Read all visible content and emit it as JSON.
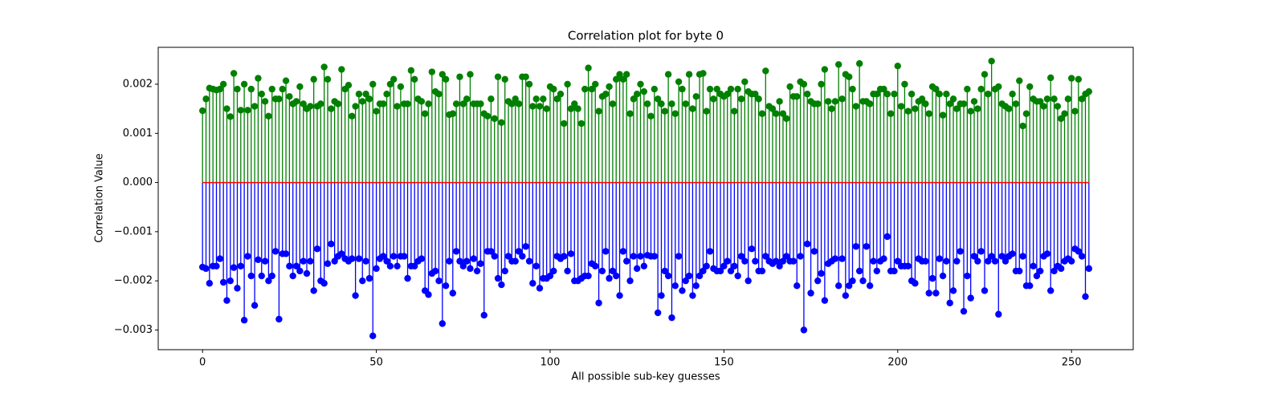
{
  "chart_data": {
    "type": "stem",
    "title": "Correlation plot for byte 0",
    "xlabel": "All possible sub-key guesses",
    "ylabel": "Correlation Value",
    "baseline_color": "red",
    "xlim": [
      -12.75,
      267.75
    ],
    "ylim": [
      -0.0034,
      0.00275
    ],
    "xticks": [
      0,
      50,
      100,
      150,
      200,
      250
    ],
    "yticks": [
      {
        "value": -0.003,
        "label": "−0.003"
      },
      {
        "value": -0.002,
        "label": "−0.002"
      },
      {
        "value": -0.001,
        "label": "−0.001"
      },
      {
        "value": 0,
        "label": "0.000"
      },
      0.001,
      0.002
    ],
    "x": [
      0,
      1,
      2,
      3,
      4,
      5,
      6,
      7,
      8,
      9,
      10,
      11,
      12,
      13,
      14,
      15,
      16,
      17,
      18,
      19,
      20,
      21,
      22,
      23,
      24,
      25,
      26,
      27,
      28,
      29,
      30,
      31,
      32,
      33,
      34,
      35,
      36,
      37,
      38,
      39,
      40,
      41,
      42,
      43,
      44,
      45,
      46,
      47,
      48,
      49,
      50,
      51,
      52,
      53,
      54,
      55,
      56,
      57,
      58,
      59,
      60,
      61,
      62,
      63,
      64,
      65,
      66,
      67,
      68,
      69,
      70,
      71,
      72,
      73,
      74,
      75,
      76,
      77,
      78,
      79,
      80,
      81,
      82,
      83,
      84,
      85,
      86,
      87,
      88,
      89,
      90,
      91,
      92,
      93,
      94,
      95,
      96,
      97,
      98,
      99,
      100,
      101,
      102,
      103,
      104,
      105,
      106,
      107,
      108,
      109,
      110,
      111,
      112,
      113,
      114,
      115,
      116,
      117,
      118,
      119,
      120,
      121,
      122,
      123,
      124,
      125,
      126,
      127,
      128,
      129,
      130,
      131,
      132,
      133,
      134,
      135,
      136,
      137,
      138,
      139,
      140,
      141,
      142,
      143,
      144,
      145,
      146,
      147,
      148,
      149,
      150,
      151,
      152,
      153,
      154,
      155,
      156,
      157,
      158,
      159,
      160,
      161,
      162,
      163,
      164,
      165,
      166,
      167,
      168,
      169,
      170,
      171,
      172,
      173,
      174,
      175,
      176,
      177,
      178,
      179,
      180,
      181,
      182,
      183,
      184,
      185,
      186,
      187,
      188,
      189,
      190,
      191,
      192,
      193,
      194,
      195,
      196,
      197,
      198,
      199,
      200,
      201,
      202,
      203,
      204,
      205,
      206,
      207,
      208,
      209,
      210,
      211,
      212,
      213,
      214,
      215,
      216,
      217,
      218,
      219,
      220,
      221,
      222,
      223,
      224,
      225,
      226,
      227,
      228,
      229,
      230,
      231,
      232,
      233,
      234,
      235,
      236,
      237,
      238,
      239,
      240,
      241,
      242,
      243,
      244,
      245,
      246,
      247,
      248,
      249,
      250,
      251,
      252,
      253,
      254,
      255
    ],
    "series": [
      {
        "color": "green",
        "values": [
          0.00146,
          0.0017,
          0.00192,
          0.0019,
          0.00188,
          0.0019,
          0.002,
          0.0015,
          0.00134,
          0.00222,
          0.0019,
          0.00147,
          0.002,
          0.00147,
          0.0019,
          0.00155,
          0.00212,
          0.0018,
          0.00165,
          0.00135,
          0.0019,
          0.0017,
          0.0017,
          0.0019,
          0.00207,
          0.00175,
          0.0016,
          0.00165,
          0.00195,
          0.0016,
          0.0015,
          0.00155,
          0.0021,
          0.00155,
          0.0016,
          0.00235,
          0.0021,
          0.0015,
          0.00165,
          0.0016,
          0.0023,
          0.0019,
          0.00198,
          0.00135,
          0.00155,
          0.0018,
          0.00165,
          0.0018,
          0.0017,
          0.002,
          0.00145,
          0.0016,
          0.0016,
          0.0018,
          0.002,
          0.0021,
          0.00155,
          0.00195,
          0.0016,
          0.0016,
          0.00228,
          0.0021,
          0.0017,
          0.00165,
          0.0014,
          0.0016,
          0.00225,
          0.00185,
          0.0018,
          0.0022,
          0.0021,
          0.00138,
          0.0014,
          0.0016,
          0.00215,
          0.0016,
          0.0017,
          0.0022,
          0.0016,
          0.0016,
          0.0016,
          0.0014,
          0.00135,
          0.0017,
          0.0013,
          0.00215,
          0.00122,
          0.0021,
          0.00165,
          0.0016,
          0.0017,
          0.0016,
          0.00215,
          0.00215,
          0.002,
          0.00155,
          0.0017,
          0.00155,
          0.0017,
          0.0015,
          0.00195,
          0.0019,
          0.0017,
          0.0018,
          0.0012,
          0.002,
          0.0015,
          0.0016,
          0.0015,
          0.0012,
          0.0019,
          0.00233,
          0.0019,
          0.002,
          0.00145,
          0.00175,
          0.0018,
          0.00195,
          0.0016,
          0.0021,
          0.0022,
          0.0021,
          0.0022,
          0.0014,
          0.0017,
          0.0018,
          0.002,
          0.00185,
          0.0016,
          0.00135,
          0.0019,
          0.0017,
          0.0016,
          0.00145,
          0.0022,
          0.0016,
          0.0014,
          0.00205,
          0.0019,
          0.0016,
          0.0022,
          0.0015,
          0.00175,
          0.0022,
          0.00222,
          0.00145,
          0.0019,
          0.0017,
          0.0019,
          0.0018,
          0.00175,
          0.0018,
          0.0019,
          0.00145,
          0.0019,
          0.0017,
          0.00205,
          0.00185,
          0.0018,
          0.0018,
          0.0017,
          0.0014,
          0.00227,
          0.00155,
          0.0015,
          0.0014,
          0.00165,
          0.0014,
          0.0013,
          0.00195,
          0.00175,
          0.00175,
          0.00205,
          0.002,
          0.0018,
          0.00165,
          0.0016,
          0.0016,
          0.002,
          0.0023,
          0.00165,
          0.0015,
          0.00165,
          0.0024,
          0.0017,
          0.0022,
          0.00215,
          0.0019,
          0.00155,
          0.00242,
          0.00165,
          0.00165,
          0.0016,
          0.0018,
          0.0018,
          0.0019,
          0.0019,
          0.0018,
          0.0014,
          0.0018,
          0.00237,
          0.00155,
          0.002,
          0.00145,
          0.0018,
          0.0015,
          0.00165,
          0.0017,
          0.0016,
          0.0014,
          0.00195,
          0.0019,
          0.0018,
          0.00137,
          0.0018,
          0.0016,
          0.0017,
          0.0015,
          0.0016,
          0.0016,
          0.0019,
          0.00145,
          0.00165,
          0.0015,
          0.0019,
          0.0022,
          0.0018,
          0.00247,
          0.0019,
          0.00195,
          0.0016,
          0.00155,
          0.0015,
          0.0018,
          0.0016,
          0.00207,
          0.00115,
          0.0014,
          0.00195,
          0.0017,
          0.00165,
          0.00165,
          0.00155,
          0.0017,
          0.00213,
          0.0017,
          0.00155,
          0.0013,
          0.0014,
          0.0017,
          0.00212,
          0.00145,
          0.0021,
          0.0017,
          0.0018,
          0.00185
        ]
      },
      {
        "color": "blue",
        "values": [
          -0.00172,
          -0.00175,
          -0.00205,
          -0.0017,
          -0.0017,
          -0.00155,
          -0.00203,
          -0.0024,
          -0.002,
          -0.00173,
          -0.00215,
          -0.0017,
          -0.0028,
          -0.0015,
          -0.0019,
          -0.0025,
          -0.00157,
          -0.0019,
          -0.0016,
          -0.002,
          -0.0019,
          -0.0014,
          -0.00278,
          -0.00145,
          -0.00145,
          -0.0017,
          -0.0019,
          -0.0017,
          -0.0018,
          -0.0016,
          -0.00185,
          -0.0016,
          -0.0022,
          -0.00135,
          -0.002,
          -0.00205,
          -0.00165,
          -0.00125,
          -0.0016,
          -0.0015,
          -0.00145,
          -0.00155,
          -0.0016,
          -0.00155,
          -0.0023,
          -0.00155,
          -0.002,
          -0.0016,
          -0.00195,
          -0.00312,
          -0.00175,
          -0.00155,
          -0.0015,
          -0.0016,
          -0.0017,
          -0.0015,
          -0.0017,
          -0.0015,
          -0.0015,
          -0.00195,
          -0.0017,
          -0.0017,
          -0.0016,
          -0.00155,
          -0.0022,
          -0.00228,
          -0.00185,
          -0.0018,
          -0.002,
          -0.00287,
          -0.0021,
          -0.0016,
          -0.00225,
          -0.0014,
          -0.0016,
          -0.0017,
          -0.0016,
          -0.00175,
          -0.00155,
          -0.0018,
          -0.00165,
          -0.0027,
          -0.0014,
          -0.0014,
          -0.0015,
          -0.00195,
          -0.00208,
          -0.0018,
          -0.0015,
          -0.0016,
          -0.0016,
          -0.0014,
          -0.0015,
          -0.0013,
          -0.0016,
          -0.00205,
          -0.0017,
          -0.00215,
          -0.00195,
          -0.00195,
          -0.0019,
          -0.0018,
          -0.0015,
          -0.00155,
          -0.0015,
          -0.0018,
          -0.00145,
          -0.002,
          -0.002,
          -0.00195,
          -0.0019,
          -0.0019,
          -0.00165,
          -0.0017,
          -0.00245,
          -0.0018,
          -0.0014,
          -0.00195,
          -0.0018,
          -0.0019,
          -0.0023,
          -0.0014,
          -0.0016,
          -0.002,
          -0.0015,
          -0.00175,
          -0.0015,
          -0.0017,
          -0.00148,
          -0.0015,
          -0.0015,
          -0.00265,
          -0.0023,
          -0.0018,
          -0.0019,
          -0.00275,
          -0.0021,
          -0.0015,
          -0.0022,
          -0.002,
          -0.0019,
          -0.0023,
          -0.0021,
          -0.0019,
          -0.0018,
          -0.0017,
          -0.0014,
          -0.00175,
          -0.0018,
          -0.0018,
          -0.0017,
          -0.0016,
          -0.0018,
          -0.0017,
          -0.0019,
          -0.0015,
          -0.0016,
          -0.002,
          -0.00135,
          -0.0016,
          -0.0018,
          -0.0018,
          -0.0015,
          -0.0016,
          -0.00165,
          -0.0016,
          -0.0017,
          -0.0016,
          -0.0015,
          -0.0016,
          -0.0016,
          -0.0021,
          -0.0015,
          -0.003,
          -0.00125,
          -0.00225,
          -0.0014,
          -0.002,
          -0.00185,
          -0.0024,
          -0.00165,
          -0.0016,
          -0.00155,
          -0.0021,
          -0.00155,
          -0.0023,
          -0.0021,
          -0.002,
          -0.0013,
          -0.0018,
          -0.002,
          -0.0013,
          -0.0021,
          -0.0016,
          -0.0018,
          -0.0016,
          -0.00155,
          -0.0011,
          -0.0018,
          -0.0018,
          -0.0016,
          -0.0017,
          -0.0017,
          -0.0017,
          -0.002,
          -0.00205,
          -0.00155,
          -0.0016,
          -0.0016,
          -0.00225,
          -0.00195,
          -0.00225,
          -0.00155,
          -0.0019,
          -0.0016,
          -0.00245,
          -0.0022,
          -0.0016,
          -0.0014,
          -0.00262,
          -0.0019,
          -0.00235,
          -0.0015,
          -0.0016,
          -0.0014,
          -0.0022,
          -0.0016,
          -0.0015,
          -0.0016,
          -0.00268,
          -0.0015,
          -0.0016,
          -0.0015,
          -0.00145,
          -0.0018,
          -0.0018,
          -0.0015,
          -0.0021,
          -0.0021,
          -0.0017,
          -0.0019,
          -0.0018,
          -0.0015,
          -0.00145,
          -0.0022,
          -0.0018,
          -0.0017,
          -0.00175,
          -0.0016,
          -0.00155,
          -0.0016,
          -0.00135,
          -0.0014,
          -0.0015,
          -0.00232,
          -0.00175
        ]
      }
    ]
  }
}
